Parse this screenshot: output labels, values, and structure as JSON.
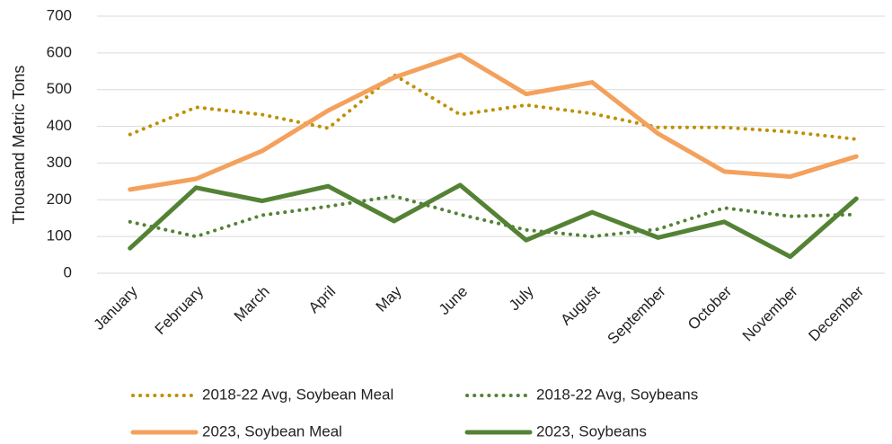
{
  "chart_data": {
    "type": "line",
    "y_label": "Thousand Metric Tons",
    "categories": [
      "January",
      "February",
      "March",
      "April",
      "May",
      "June",
      "July",
      "August",
      "September",
      "October",
      "November",
      "December"
    ],
    "ylim": [
      0,
      700
    ],
    "yticks": [
      0,
      100,
      200,
      300,
      400,
      500,
      600,
      700
    ],
    "grid": true,
    "series": [
      {
        "name": "2018-22 Avg, Soybean Meal",
        "color": "#bf9000",
        "style": "dotted",
        "values": [
          378,
          452,
          432,
          395,
          540,
          432,
          458,
          435,
          397,
          397,
          385,
          365
        ]
      },
      {
        "name": "2018-22 Avg, Soybeans",
        "color": "#548235",
        "style": "dotted",
        "values": [
          140,
          100,
          158,
          182,
          210,
          160,
          118,
          100,
          120,
          178,
          155,
          160
        ]
      },
      {
        "name": "2023, Soybean Meal",
        "color": "#f4a15d",
        "style": "solid",
        "values": [
          228,
          257,
          333,
          443,
          533,
          595,
          488,
          520,
          380,
          277,
          263,
          318
        ]
      },
      {
        "name": "2023, Soybeans",
        "color": "#548235",
        "style": "solid",
        "values": [
          68,
          233,
          197,
          237,
          142,
          240,
          90,
          166,
          97,
          140,
          45,
          203
        ]
      }
    ]
  }
}
